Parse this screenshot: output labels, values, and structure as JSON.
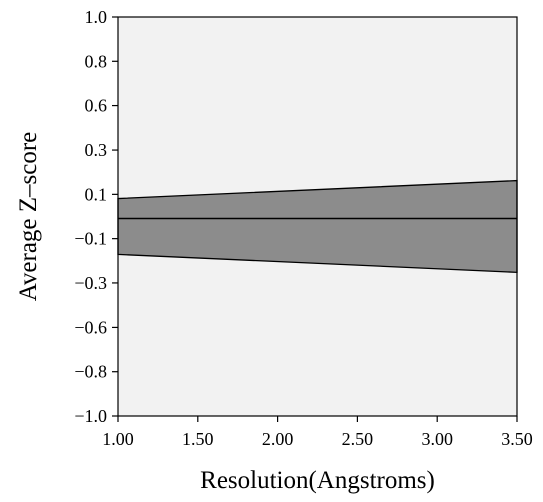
{
  "chart_data": {
    "type": "area",
    "xlabel": "Resolution(Angstroms)",
    "ylabel": "Average Z–score",
    "xlim": [
      1.0,
      3.5
    ],
    "ylim": [
      -1.0,
      1.0
    ],
    "x_ticks": [
      "1.00",
      "1.50",
      "2.00",
      "2.50",
      "3.00",
      "3.50"
    ],
    "x_tick_values": [
      1.0,
      1.5,
      2.0,
      2.5,
      3.0,
      3.5
    ],
    "y_ticks": [
      "1.0",
      "0.8",
      "0.6",
      "0.3",
      "0.1",
      "−0.1",
      "−0.3",
      "−0.6",
      "−0.8",
      "−1.0"
    ],
    "y_tick_values": [
      1.0,
      0.778,
      0.556,
      0.333,
      0.111,
      -0.111,
      -0.333,
      -0.556,
      -0.778,
      -1.0
    ],
    "grid": false,
    "band": {
      "x": [
        1.0,
        3.5
      ],
      "upper": [
        0.09,
        0.18
      ],
      "lower": [
        -0.19,
        -0.28
      ]
    },
    "mean_line": {
      "x": [
        1.0,
        3.5
      ],
      "y": [
        -0.01,
        -0.01
      ]
    },
    "colors": {
      "plot_background": "#f2f2f2",
      "band_fill": "#8c8c8c",
      "line": "#000000"
    }
  }
}
